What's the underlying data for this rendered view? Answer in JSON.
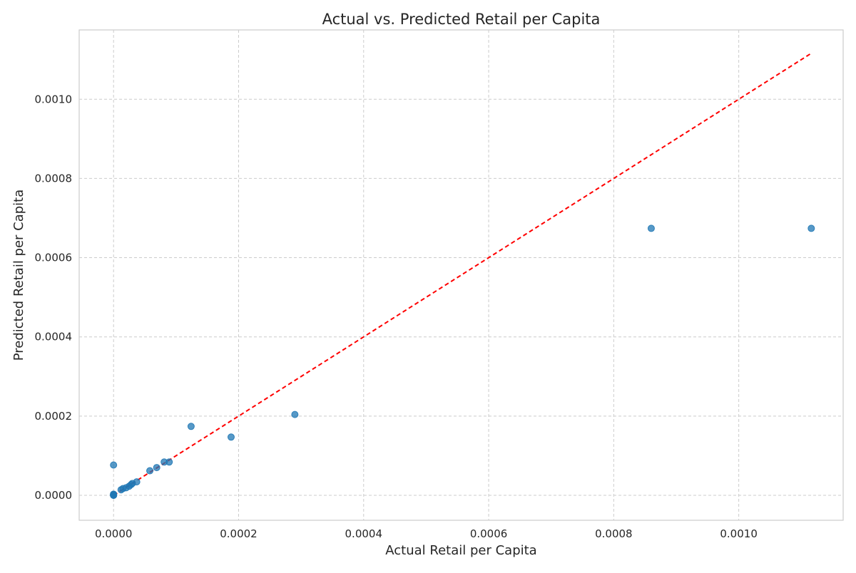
{
  "chart_data": {
    "type": "scatter",
    "title": "Actual vs. Predicted Retail per Capita",
    "xlabel": "Actual Retail per Capita",
    "ylabel": "Predicted Retail per Capita",
    "xlim": [
      -5.5e-05,
      0.001167
    ],
    "ylim": [
      -6.3e-05,
      0.001175
    ],
    "xticks": [
      0.0,
      0.0002,
      0.0004,
      0.0006,
      0.0008,
      0.001
    ],
    "xtick_labels": [
      "0.0000",
      "0.0002",
      "0.0004",
      "0.0006",
      "0.0008",
      "0.0010"
    ],
    "yticks": [
      0.0,
      0.0002,
      0.0004,
      0.0006,
      0.0008,
      0.001
    ],
    "ytick_labels": [
      "0.0000",
      "0.0002",
      "0.0004",
      "0.0006",
      "0.0008",
      "0.0010"
    ],
    "grid": true,
    "series": [
      {
        "color": "#1f77b4",
        "points": [
          {
            "x": 0.0,
            "y": 0.0
          },
          {
            "x": 0.0,
            "y": 0.0
          },
          {
            "x": 0.0,
            "y": 1e-06
          },
          {
            "x": 0.0,
            "y": 2e-06
          },
          {
            "x": 0.0,
            "y": 3e-06
          },
          {
            "x": 0.0,
            "y": 7.65e-05
          },
          {
            "x": 1.2e-05,
            "y": 1.4e-05
          },
          {
            "x": 1.5e-05,
            "y": 1.7e-05
          },
          {
            "x": 2e-05,
            "y": 1.9e-05
          },
          {
            "x": 2.5e-05,
            "y": 2.3e-05
          },
          {
            "x": 2.8e-05,
            "y": 2.7e-05
          },
          {
            "x": 3e-05,
            "y": 3e-05
          },
          {
            "x": 3.7e-05,
            "y": 3.4e-05
          },
          {
            "x": 5.8e-05,
            "y": 6.2e-05
          },
          {
            "x": 6.9e-05,
            "y": 7e-05
          },
          {
            "x": 8.1e-05,
            "y": 8.4e-05
          },
          {
            "x": 8.9e-05,
            "y": 8.4e-05
          },
          {
            "x": 0.000124,
            "y": 0.000174
          },
          {
            "x": 0.000188,
            "y": 0.000147
          },
          {
            "x": 0.00029,
            "y": 0.000204
          },
          {
            "x": 0.00086,
            "y": 0.000674
          },
          {
            "x": 0.001116,
            "y": 0.000674
          }
        ]
      }
    ],
    "reference_line": {
      "color": "#ff0000",
      "style": "dashed",
      "from": [
        0.0,
        0.0
      ],
      "to": [
        0.001116,
        0.001116
      ]
    }
  }
}
